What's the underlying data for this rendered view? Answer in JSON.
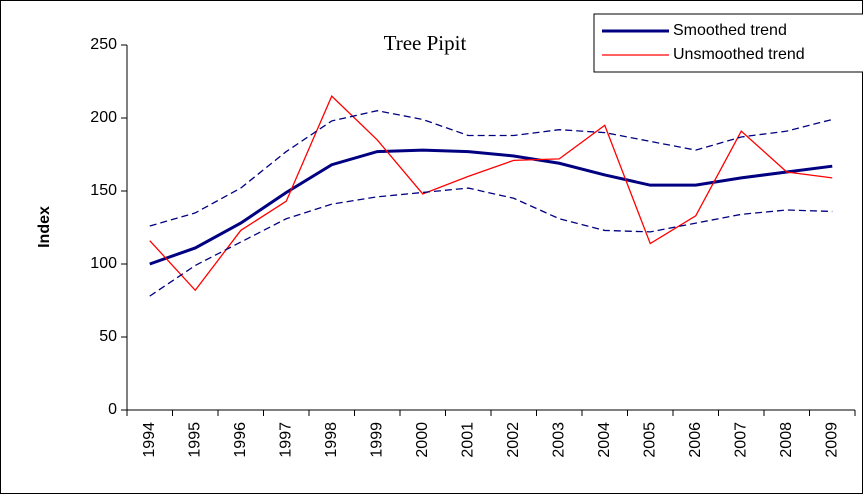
{
  "chart_data": {
    "type": "line",
    "title": "Tree Pipit",
    "y_label": "Index",
    "categories": [
      "1994",
      "1995",
      "1996",
      "1997",
      "1998",
      "1999",
      "2000",
      "2001",
      "2002",
      "2003",
      "2004",
      "2005",
      "2006",
      "2007",
      "2008",
      "2009"
    ],
    "series": [
      {
        "name": "Smoothed trend",
        "color": "#000080",
        "width": 3,
        "dashed": false,
        "values": [
          100,
          111,
          128,
          149,
          168,
          177,
          178,
          177,
          174,
          169,
          161,
          154,
          154,
          159,
          163,
          167
        ]
      },
      {
        "name": "Unsmoothed trend",
        "color": "#ff0000",
        "width": 1.3,
        "dashed": false,
        "values": [
          116,
          82,
          123,
          143,
          215,
          185,
          148,
          160,
          171,
          172,
          195,
          114,
          133,
          191,
          163,
          159
        ]
      },
      {
        "color": "#000080",
        "width": 1.3,
        "dashed": true,
        "values": [
          126,
          135,
          152,
          177,
          198,
          205,
          199,
          188,
          188,
          192,
          190,
          184,
          178,
          187,
          191,
          199
        ]
      },
      {
        "color": "#000080",
        "width": 1.3,
        "dashed": true,
        "values": [
          78,
          99,
          115,
          131,
          141,
          146,
          149,
          152,
          145,
          131,
          123,
          122,
          128,
          134,
          137,
          136
        ]
      }
    ],
    "ylim": [
      0,
      250
    ],
    "yticks": [
      0,
      50,
      100,
      150,
      200,
      250
    ],
    "grid": false,
    "legend": "top-right"
  }
}
